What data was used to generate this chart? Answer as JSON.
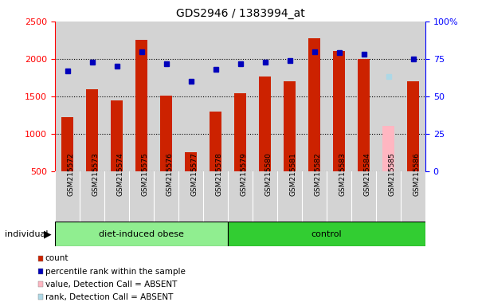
{
  "title": "GDS2946 / 1383994_at",
  "samples": [
    "GSM215572",
    "GSM215573",
    "GSM215574",
    "GSM215575",
    "GSM215576",
    "GSM215577",
    "GSM215578",
    "GSM215579",
    "GSM215580",
    "GSM215581",
    "GSM215582",
    "GSM215583",
    "GSM215584",
    "GSM215585",
    "GSM215586"
  ],
  "counts": [
    1220,
    1590,
    1450,
    2250,
    1510,
    760,
    1300,
    1540,
    1760,
    1700,
    2280,
    2110,
    2000,
    1110,
    1700
  ],
  "percentile_ranks": [
    67,
    73,
    70,
    80,
    72,
    60,
    68,
    72,
    73,
    74,
    80,
    79,
    78,
    63,
    75
  ],
  "absent_idx": [
    13
  ],
  "group_labels": [
    "diet-induced obese",
    "control"
  ],
  "group_ranges": [
    [
      0,
      7
    ],
    [
      7,
      15
    ]
  ],
  "group_colors": [
    "#90EE90",
    "#32CD32"
  ],
  "ylim_left": [
    500,
    2500
  ],
  "ylim_right": [
    0,
    100
  ],
  "right_ticks": [
    0,
    25,
    50,
    75,
    100
  ],
  "right_tick_labels": [
    "0",
    "25",
    "50",
    "75",
    "100%"
  ],
  "left_ticks": [
    500,
    1000,
    1500,
    2000,
    2500
  ],
  "bar_color": "#CC2200",
  "absent_bar_color": "#FFB6C1",
  "dot_color": "#0000BB",
  "absent_dot_color": "#ADD8E6",
  "bar_width": 0.5,
  "plot_bg_color": "#D3D3D3",
  "xtick_bg_color": "#D3D3D3",
  "legend_items": [
    {
      "label": "count",
      "color": "#CC2200"
    },
    {
      "label": "percentile rank within the sample",
      "color": "#0000BB"
    },
    {
      "label": "value, Detection Call = ABSENT",
      "color": "#FFB6C1"
    },
    {
      "label": "rank, Detection Call = ABSENT",
      "color": "#ADD8E6"
    }
  ]
}
